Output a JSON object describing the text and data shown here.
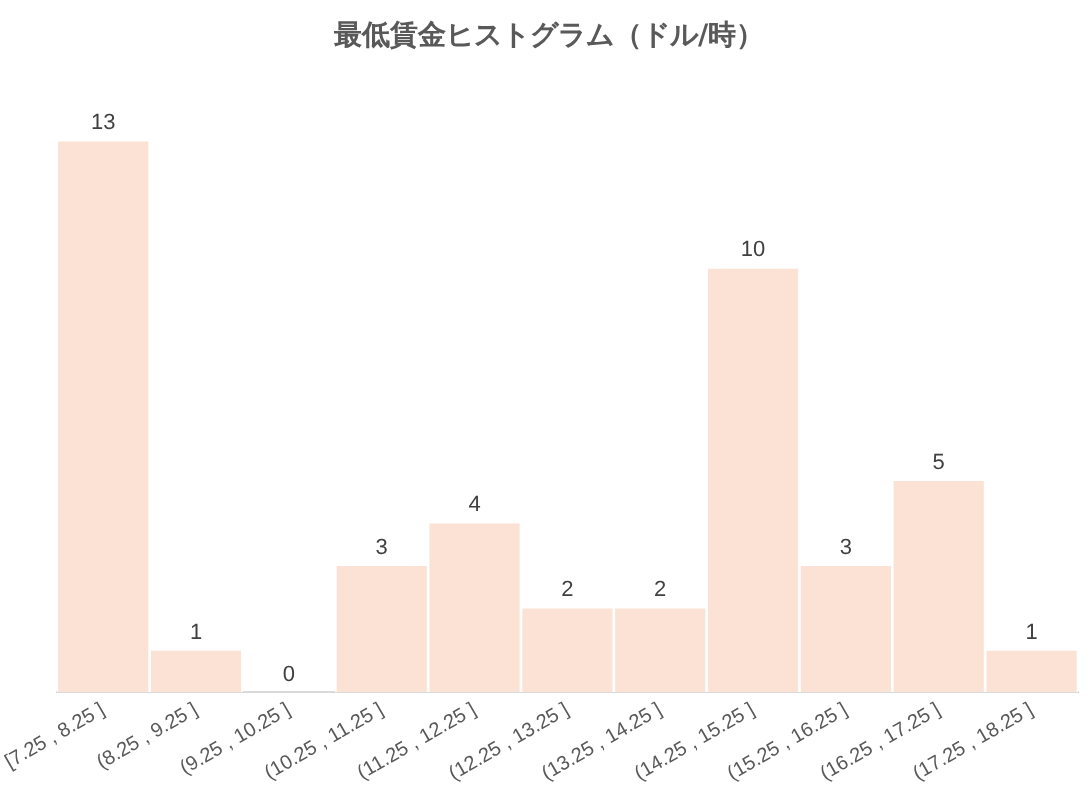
{
  "chart_data": {
    "type": "bar",
    "title": "最低賃金ヒストグラム（ドル/時）",
    "categories": [
      "[7.25 , 8.25 ]",
      "(8.25 , 9.25 ]",
      "(9.25 , 10.25 ]",
      "(10.25 , 11.25 ]",
      "(11.25 , 12.25 ]",
      "(12.25 , 13.25 ]",
      "(13.25 , 14.25 ]",
      "(14.25 , 15.25 ]",
      "(15.25 , 16.25 ]",
      "(16.25 , 17.25 ]",
      "(17.25 , 18.25 ]"
    ],
    "values": [
      13,
      1,
      0,
      3,
      4,
      2,
      2,
      10,
      3,
      5,
      1
    ],
    "color": "#fbe2d5",
    "data_labels": true,
    "tick_labels": "x",
    "grid": false,
    "legend": false
  }
}
